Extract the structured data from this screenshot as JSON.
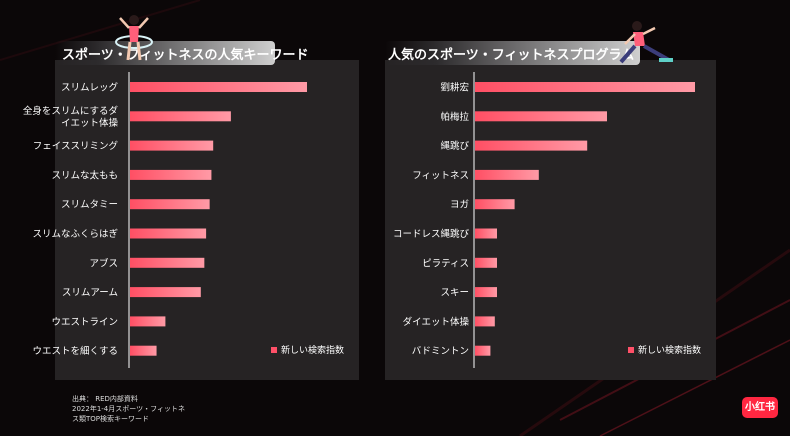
{
  "left_title": "スポーツ・フィットネスの人気キーワード",
  "right_title": "人気のスポーツ・フィットネスプログラム",
  "source_lines": [
    "出典： RED内部資料",
    "2022年1-4月スポーツ・フィットネ",
    "ス類TOP検索キーワード"
  ],
  "logo_text": "小红书",
  "colors": {
    "bar_start": "#ff4f64",
    "bar_end": "#ff9aa6",
    "panel": "#262324",
    "background": "#0b0708"
  },
  "chart_data": [
    {
      "type": "bar",
      "orientation": "horizontal",
      "title": "スポーツ・フィットネスの人気キーワード",
      "legend": "新しい検索指数",
      "legend_position": "bottom-right",
      "categories": [
        "スリムレッグ",
        "全身をスリムにするダイエット体操",
        "フェイススリミング",
        "スリムな太もも",
        "スリムタミー",
        "スリムなふくらはぎ",
        "アブス",
        "スリムアーム",
        "ウエストライン",
        "ウエストを細くする"
      ],
      "category_lines": [
        [
          "スリムレッグ"
        ],
        [
          "全身をスリムにするダ",
          "イエット体操"
        ],
        [
          "フェイススリミング"
        ],
        [
          "スリムな太もも"
        ],
        [
          "スリムタミー"
        ],
        [
          "スリムなふくらはぎ"
        ],
        [
          "アブス"
        ],
        [
          "スリムアーム"
        ],
        [
          "ウエストライン"
        ],
        [
          "ウエストを細くする"
        ]
      ],
      "values": [
        100,
        57,
        47,
        46,
        45,
        43,
        42,
        40,
        20,
        15
      ],
      "xlim": [
        0,
        100
      ],
      "grid": false
    },
    {
      "type": "bar",
      "orientation": "horizontal",
      "title": "人気のスポーツ・フィットネスプログラム",
      "legend": "新しい検索指数",
      "legend_position": "bottom-right",
      "categories": [
        "劉耕宏",
        "帕梅拉",
        "縄跳び",
        "フィットネス",
        "ヨガ",
        "コードレス縄跳び",
        "ピラティス",
        "スキー",
        "ダイエット体操",
        "バドミントン"
      ],
      "category_lines": [
        [
          "劉耕宏"
        ],
        [
          "帕梅拉"
        ],
        [
          "縄跳び"
        ],
        [
          "フィットネス"
        ],
        [
          "ヨガ"
        ],
        [
          "コードレス縄跳び"
        ],
        [
          "ピラティス"
        ],
        [
          "スキー"
        ],
        [
          "ダイエット体操"
        ],
        [
          "バドミントン"
        ]
      ],
      "values": [
        100,
        60,
        51,
        29,
        18,
        10,
        10,
        10,
        9,
        7
      ],
      "xlim": [
        0,
        100
      ],
      "grid": false
    }
  ]
}
